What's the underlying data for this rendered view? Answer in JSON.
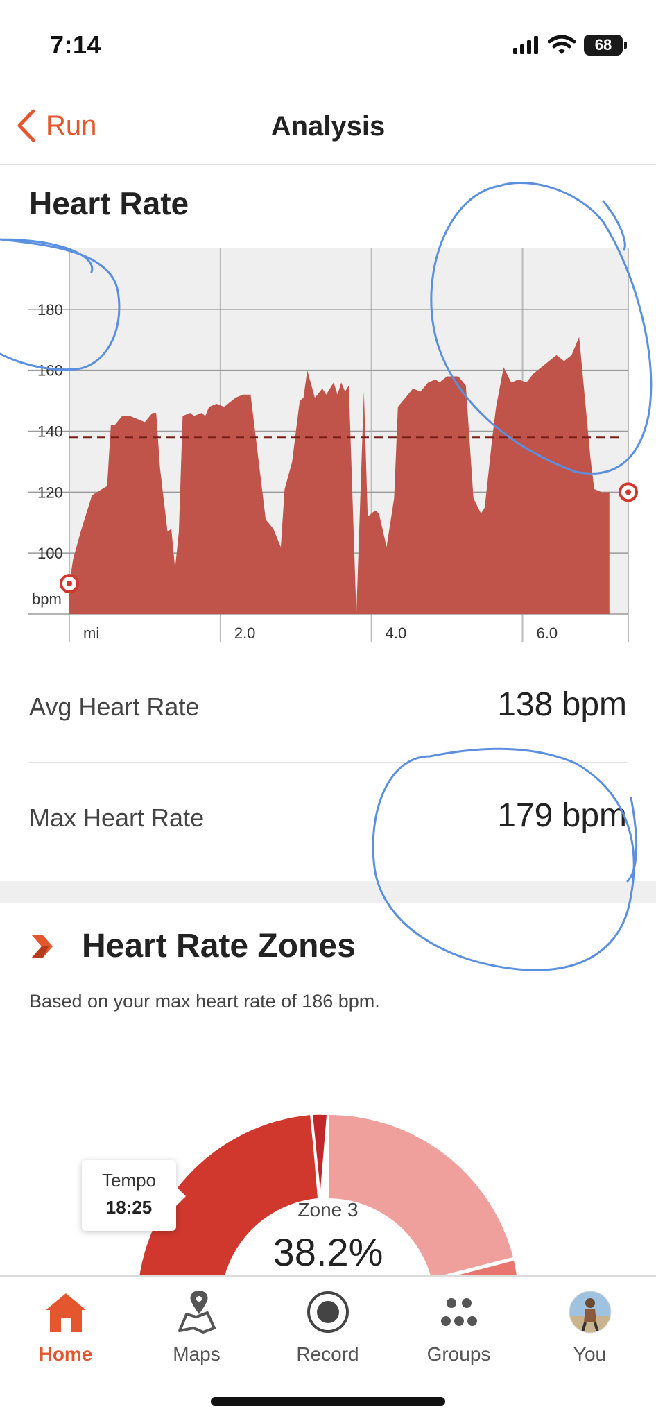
{
  "status_bar": {
    "time": "7:14",
    "battery": "68"
  },
  "nav": {
    "back_label": "Run",
    "title": "Analysis"
  },
  "heart_rate": {
    "title": "Heart Rate",
    "avg_label": "Avg Heart Rate",
    "avg_value": "138 bpm",
    "max_label": "Max Heart Rate",
    "max_value": "179 bpm"
  },
  "chart_data": {
    "type": "area",
    "title": "Heart Rate",
    "ylabel": "bpm",
    "xlabel": "mi",
    "xlim": [
      0,
      7.4
    ],
    "ylim": [
      80,
      200
    ],
    "yticks": [
      100,
      120,
      140,
      160,
      180
    ],
    "xticks": [
      "mi",
      "2.0",
      "4.0",
      "6.0"
    ],
    "xtick_values": [
      0,
      2.0,
      4.0,
      6.0
    ],
    "average_line": 138,
    "color": "#c0544a",
    "series": [
      {
        "x": [
          0,
          0.05,
          0.15,
          0.3,
          0.5,
          0.55,
          0.6,
          0.7,
          0.75,
          0.8,
          1.0,
          1.1,
          1.15,
          1.2,
          1.3,
          1.35,
          1.4,
          1.45,
          1.5,
          1.6,
          1.65,
          1.75,
          1.8,
          1.85,
          1.95,
          2.05,
          2.2,
          2.3,
          2.4,
          2.6,
          2.7,
          2.8,
          2.85,
          2.95,
          3.05,
          3.1,
          3.15,
          3.25,
          3.35,
          3.4,
          3.5,
          3.55,
          3.6,
          3.65,
          3.7,
          3.8,
          3.9,
          3.95,
          4.05,
          4.1,
          4.2,
          4.3,
          4.35,
          4.55,
          4.65,
          4.75,
          4.85,
          4.9,
          5.0,
          5.15,
          5.25,
          5.35,
          5.45,
          5.5,
          5.6,
          5.65,
          5.75,
          5.85,
          5.95,
          6.05,
          6.15,
          6.2,
          6.35,
          6.45,
          6.55,
          6.65,
          6.75,
          6.9,
          6.95,
          7.05,
          7.15
        ],
        "y": [
          90,
          98,
          107,
          119,
          122,
          142,
          142,
          145,
          145,
          145,
          143,
          146,
          146,
          128,
          107,
          108,
          95,
          107,
          145,
          146,
          145,
          146,
          145,
          148,
          149,
          148,
          151,
          152,
          152,
          111,
          108,
          102,
          121,
          130,
          150,
          151,
          160,
          151,
          154,
          152,
          156,
          152,
          156,
          153,
          155,
          80,
          153,
          112,
          114,
          113,
          102,
          118,
          148,
          154,
          153,
          156,
          157,
          156,
          158,
          158,
          155,
          118,
          113,
          115,
          138,
          148,
          161,
          156,
          157,
          156,
          159,
          160,
          163,
          165,
          163,
          165,
          171,
          131,
          121,
          120,
          120
        ]
      }
    ],
    "markers": [
      {
        "x": 0,
        "y": 90
      },
      {
        "x": 7.4,
        "y": 120
      }
    ]
  },
  "zones": {
    "title": "Heart Rate Zones",
    "subtitle": "Based on your max heart rate of 186 bpm.",
    "center_label": "Zone 3",
    "center_value": "38.2%",
    "tooltip_label": "Tempo",
    "tooltip_value": "18:25",
    "colors": {
      "zone3": "#d0382d",
      "zone4": "#c0262a",
      "zone1": "#f0a09c",
      "zone2": "#e8756e"
    }
  },
  "tabs": [
    {
      "label": "Home",
      "icon": "home-icon",
      "active": true
    },
    {
      "label": "Maps",
      "icon": "map-pin-icon",
      "active": false
    },
    {
      "label": "Record",
      "icon": "record-icon",
      "active": false
    },
    {
      "label": "Groups",
      "icon": "groups-icon",
      "active": false
    },
    {
      "label": "You",
      "icon": "avatar",
      "active": false
    }
  ],
  "colors": {
    "accent": "#e4572e",
    "chart_fill": "#c0544a",
    "chart_bg": "#efefef",
    "annotation": "#5b8fe0"
  }
}
